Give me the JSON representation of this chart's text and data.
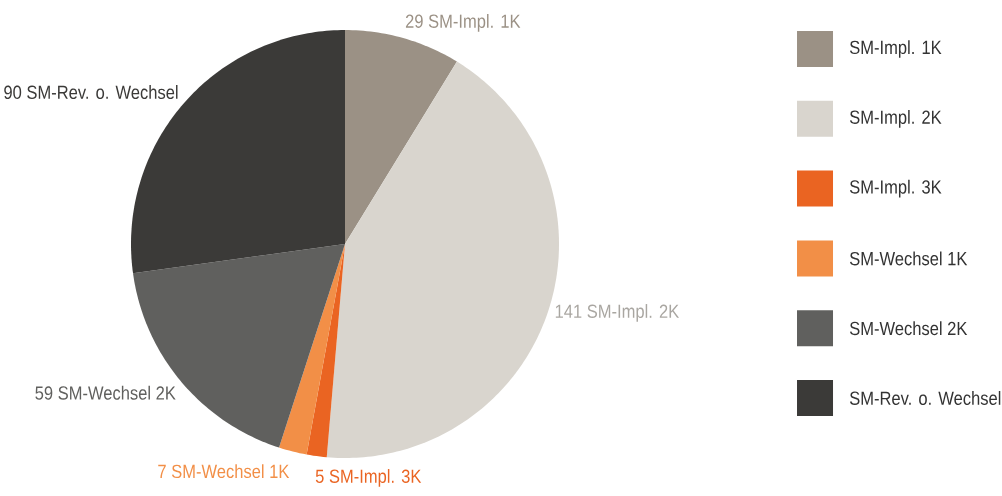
{
  "chart_data": {
    "type": "pie",
    "categories": [
      "SM-Impl. 1K",
      "SM-Impl. 2K",
      "SM-Impl. 3K",
      "SM-Wechsel 1K",
      "SM-Wechsel 2K",
      "SM-Rev. o. Wechsel"
    ],
    "values": [
      29,
      141,
      5,
      7,
      59,
      90
    ],
    "colors": [
      "#9b9185",
      "#d9d5ce",
      "#ea6422",
      "#f28f47",
      "#60605e",
      "#3b3a38"
    ],
    "data_labels": true,
    "legend": "right"
  }
}
